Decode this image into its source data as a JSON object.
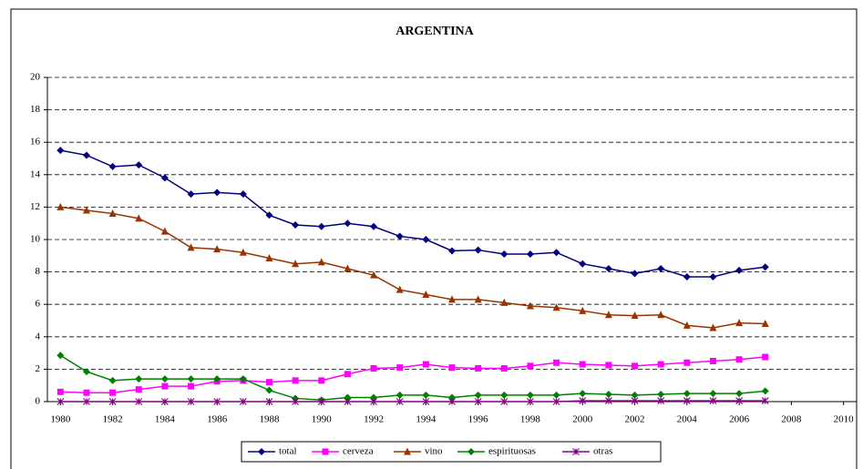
{
  "chart_data": {
    "type": "line",
    "title": "ARGENTINA",
    "x": [
      1980,
      1981,
      1982,
      1983,
      1984,
      1985,
      1986,
      1987,
      1988,
      1989,
      1990,
      1991,
      1992,
      1993,
      1994,
      1995,
      1996,
      1997,
      1998,
      1999,
      2000,
      2001,
      2002,
      2003,
      2004,
      2005,
      2006,
      2007
    ],
    "xlim": [
      1979.5,
      2010.5
    ],
    "xticks": [
      1980,
      1982,
      1984,
      1986,
      1988,
      1990,
      1992,
      1994,
      1996,
      1998,
      2000,
      2002,
      2004,
      2006,
      2008,
      2010
    ],
    "ylim": [
      0,
      20
    ],
    "yticks": [
      0,
      2,
      4,
      6,
      8,
      10,
      12,
      14,
      16,
      18,
      20
    ],
    "grid": true,
    "legend": "bottom",
    "series": [
      {
        "name": "total",
        "color": "#000080",
        "marker": "diamond",
        "values": [
          15.5,
          15.2,
          14.5,
          14.6,
          13.8,
          12.8,
          12.9,
          12.8,
          11.5,
          10.9,
          10.8,
          11.0,
          10.8,
          10.2,
          10.0,
          9.3,
          9.35,
          9.1,
          9.1,
          9.2,
          8.5,
          8.2,
          7.9,
          8.2,
          7.7,
          7.7,
          8.1,
          8.3
        ]
      },
      {
        "name": "cerveza",
        "color": "#ff00ff",
        "marker": "square",
        "values": [
          0.6,
          0.55,
          0.55,
          0.75,
          0.95,
          0.95,
          1.25,
          1.3,
          1.2,
          1.3,
          1.3,
          1.7,
          2.05,
          2.1,
          2.3,
          2.1,
          2.05,
          2.05,
          2.2,
          2.4,
          2.3,
          2.25,
          2.2,
          2.3,
          2.4,
          2.5,
          2.6,
          2.75
        ]
      },
      {
        "name": "vino",
        "color": "#993300",
        "marker": "triangle",
        "values": [
          12.0,
          11.8,
          11.6,
          11.3,
          10.5,
          9.5,
          9.4,
          9.2,
          8.85,
          8.5,
          8.6,
          8.2,
          7.8,
          6.9,
          6.6,
          6.3,
          6.3,
          6.1,
          5.9,
          5.8,
          5.6,
          5.35,
          5.3,
          5.35,
          4.7,
          4.55,
          4.85,
          4.8
        ]
      },
      {
        "name": "espirituosas",
        "color": "#008000",
        "marker": "diamond",
        "values": [
          2.85,
          1.85,
          1.3,
          1.4,
          1.4,
          1.4,
          1.4,
          1.4,
          0.7,
          0.2,
          0.1,
          0.25,
          0.25,
          0.4,
          0.4,
          0.25,
          0.4,
          0.4,
          0.4,
          0.4,
          0.5,
          0.45,
          0.4,
          0.45,
          0.5,
          0.5,
          0.5,
          0.65
        ]
      },
      {
        "name": "otras",
        "color": "#800080",
        "marker": "star",
        "values": [
          0,
          0,
          0,
          0,
          0,
          0,
          0,
          0,
          0,
          0,
          0,
          0,
          0,
          0,
          0,
          0,
          0,
          0,
          0,
          0,
          0.05,
          0.05,
          0.05,
          0.05,
          0.05,
          0.05,
          0.05,
          0.05
        ]
      }
    ]
  }
}
